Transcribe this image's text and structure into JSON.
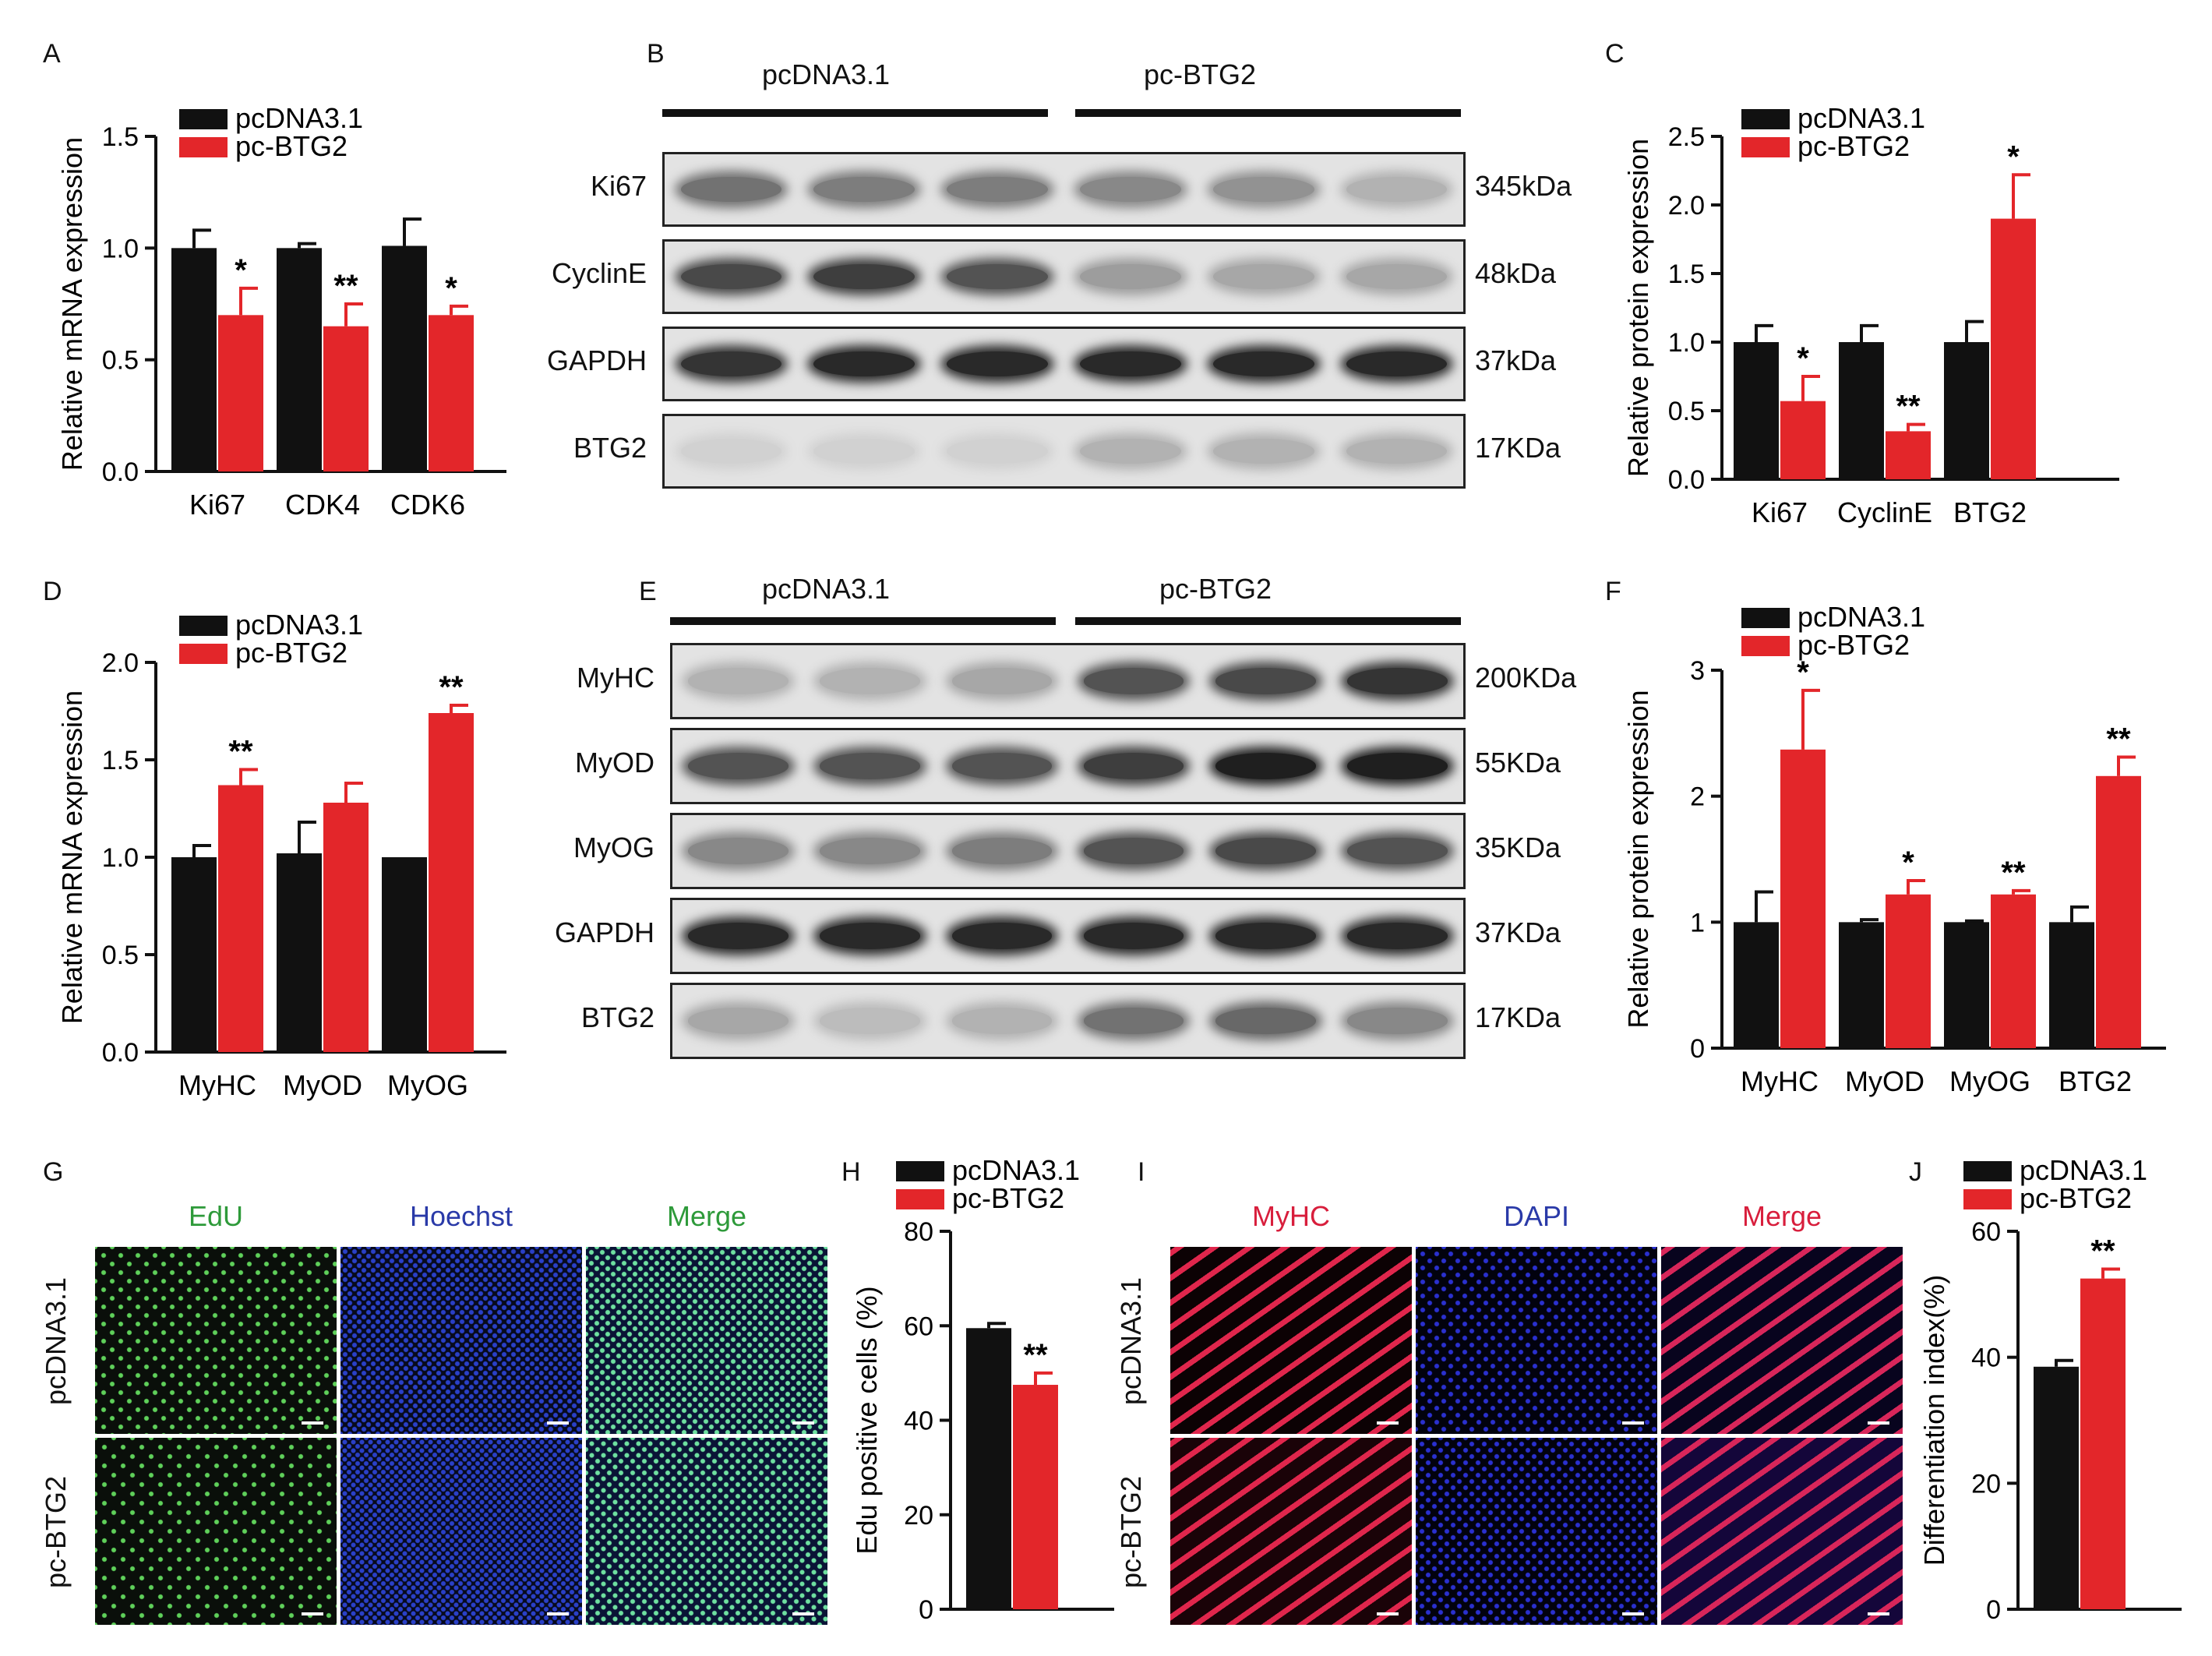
{
  "panels": {
    "A": "A",
    "B": "B",
    "C": "C",
    "D": "D",
    "E": "E",
    "F": "F",
    "G": "G",
    "H": "H",
    "I": "I",
    "J": "J"
  },
  "colors": {
    "control": "#111111",
    "treatment": "#e3262a"
  },
  "chart_data": [
    {
      "id": "A",
      "type": "bar",
      "ylabel": "Relative mRNA expression",
      "categories": [
        "Ki67",
        "CDK4",
        "CDK6"
      ],
      "ylim": [
        0,
        1.5
      ],
      "yticks": [
        "0.0",
        "0.5",
        "1.0",
        "1.5"
      ],
      "ytick_values": [
        0,
        0.5,
        1.0,
        1.5
      ],
      "legend": "top-left",
      "series": [
        {
          "name": "pcDNA3.1",
          "color": "#111111",
          "values": [
            1.0,
            1.0,
            1.01
          ],
          "errors": [
            0.08,
            0.02,
            0.12
          ]
        },
        {
          "name": "pc-BTG2",
          "color": "#e3262a",
          "values": [
            0.7,
            0.65,
            0.7
          ],
          "errors": [
            0.12,
            0.1,
            0.04
          ]
        }
      ],
      "significance": [
        "*",
        "**",
        "*"
      ]
    },
    {
      "id": "C",
      "type": "bar",
      "ylabel": "Relative protein expression",
      "categories": [
        "Ki67",
        "CyclinE",
        "BTG2"
      ],
      "ylim": [
        0,
        2.5
      ],
      "yticks": [
        "0.0",
        "0.5",
        "1.0",
        "1.5",
        "2.0",
        "2.5"
      ],
      "ytick_values": [
        0,
        0.5,
        1.0,
        1.5,
        2.0,
        2.5
      ],
      "legend": "top-left",
      "series": [
        {
          "name": "pcDNA3.1",
          "color": "#111111",
          "values": [
            1.0,
            1.0,
            1.0
          ],
          "errors": [
            0.12,
            0.12,
            0.15
          ]
        },
        {
          "name": "pc-BTG2",
          "color": "#e3262a",
          "values": [
            0.57,
            0.35,
            1.9
          ],
          "errors": [
            0.18,
            0.05,
            0.32
          ]
        }
      ],
      "significance": [
        "*",
        "**",
        "*"
      ]
    },
    {
      "id": "D",
      "type": "bar",
      "ylabel": "Relative mRNA expression",
      "categories": [
        "MyHC",
        "MyOD",
        "MyOG"
      ],
      "ylim": [
        0,
        2.0
      ],
      "yticks": [
        "0.0",
        "0.5",
        "1.0",
        "1.5",
        "2.0"
      ],
      "ytick_values": [
        0,
        0.5,
        1.0,
        1.5,
        2.0
      ],
      "legend": "top-left",
      "series": [
        {
          "name": "pcDNA3.1",
          "color": "#111111",
          "values": [
            1.0,
            1.02,
            1.0
          ],
          "errors": [
            0.06,
            0.16,
            0.0
          ]
        },
        {
          "name": "pc-BTG2",
          "color": "#e3262a",
          "values": [
            1.37,
            1.28,
            1.74
          ],
          "errors": [
            0.08,
            0.1,
            0.04
          ]
        }
      ],
      "significance": [
        "**",
        "",
        "**"
      ]
    },
    {
      "id": "F",
      "type": "bar",
      "ylabel": "Relative protein expression",
      "categories": [
        "MyHC",
        "MyOD",
        "MyOG",
        "BTG2"
      ],
      "ylim": [
        0,
        3
      ],
      "yticks": [
        "0",
        "1",
        "2",
        "3"
      ],
      "ytick_values": [
        0,
        1,
        2,
        3
      ],
      "legend": "top-left",
      "series": [
        {
          "name": "pcDNA3.1",
          "color": "#111111",
          "values": [
            1.0,
            1.0,
            1.0,
            1.0
          ],
          "errors": [
            0.24,
            0.02,
            0.01,
            0.12
          ]
        },
        {
          "name": "pc-BTG2",
          "color": "#e3262a",
          "values": [
            2.37,
            1.22,
            1.22,
            2.16
          ],
          "errors": [
            0.47,
            0.11,
            0.03,
            0.15
          ]
        }
      ],
      "significance": [
        "*",
        "*",
        "**",
        "**"
      ]
    },
    {
      "id": "H",
      "type": "bar",
      "ylabel": "Edu positive cells (%)",
      "categories": [
        ""
      ],
      "ylim": [
        0,
        80
      ],
      "yticks": [
        "0",
        "20",
        "40",
        "60",
        "80"
      ],
      "ytick_values": [
        0,
        20,
        40,
        60,
        80
      ],
      "legend": "top-left",
      "series": [
        {
          "name": "pcDNA3.1",
          "color": "#111111",
          "values": [
            59.5
          ],
          "errors": [
            1.0
          ]
        },
        {
          "name": "pc-BTG2",
          "color": "#e3262a",
          "values": [
            47.5
          ],
          "errors": [
            2.5
          ]
        }
      ],
      "significance": [
        "**"
      ]
    },
    {
      "id": "J",
      "type": "bar",
      "ylabel": "Differentiation index(%)",
      "categories": [
        ""
      ],
      "ylim": [
        0,
        60
      ],
      "yticks": [
        "0",
        "20",
        "40",
        "60"
      ],
      "ytick_values": [
        0,
        20,
        40,
        60
      ],
      "legend": "top-left",
      "series": [
        {
          "name": "pcDNA3.1",
          "color": "#111111",
          "values": [
            38.5
          ],
          "errors": [
            1.0
          ]
        },
        {
          "name": "pc-BTG2",
          "color": "#e3262a",
          "values": [
            52.5
          ],
          "errors": [
            1.5
          ]
        }
      ],
      "significance": [
        "**"
      ]
    }
  ],
  "blots": {
    "B": {
      "groups": [
        "pcDNA3.1",
        "pc-BTG2"
      ],
      "rows": [
        {
          "label": "Ki67",
          "kda": "345kDa",
          "intensity": [
            0.55,
            0.5,
            0.5,
            0.45,
            0.4,
            0.25
          ]
        },
        {
          "label": "CyclinE",
          "kda": "48kDa",
          "intensity": [
            0.75,
            0.8,
            0.7,
            0.35,
            0.3,
            0.3
          ]
        },
        {
          "label": "GAPDH",
          "kda": "37kDa",
          "intensity": [
            0.85,
            0.9,
            0.9,
            0.9,
            0.9,
            0.9
          ]
        },
        {
          "label": "BTG2",
          "kda": "17KDa",
          "intensity": [
            0.1,
            0.1,
            0.1,
            0.25,
            0.25,
            0.25
          ]
        }
      ]
    },
    "E": {
      "groups": [
        "pcDNA3.1",
        "pc-BTG2"
      ],
      "rows": [
        {
          "label": "MyHC",
          "kda": "200KDa",
          "intensity": [
            0.25,
            0.25,
            0.3,
            0.7,
            0.75,
            0.85
          ]
        },
        {
          "label": "MyOD",
          "kda": "55KDa",
          "intensity": [
            0.7,
            0.7,
            0.7,
            0.8,
            0.95,
            0.95
          ]
        },
        {
          "label": "MyOG",
          "kda": "35KDa",
          "intensity": [
            0.45,
            0.45,
            0.5,
            0.7,
            0.75,
            0.7
          ]
        },
        {
          "label": "GAPDH",
          "kda": "37KDa",
          "intensity": [
            0.9,
            0.9,
            0.9,
            0.9,
            0.9,
            0.9
          ]
        },
        {
          "label": "BTG2",
          "kda": "17KDa",
          "intensity": [
            0.3,
            0.2,
            0.25,
            0.55,
            0.6,
            0.45
          ]
        }
      ]
    }
  },
  "micrographs": {
    "G": {
      "titles": [
        "EdU",
        "Hoechst",
        "Merge"
      ],
      "title_colors": [
        "#2e9a3a",
        "#2a3aa8",
        "#2e9a3a"
      ],
      "rows": [
        "pcDNA3.1",
        "pc-BTG2"
      ]
    },
    "I": {
      "titles": [
        "MyHC",
        "DAPI",
        "Merge"
      ],
      "title_colors": [
        "#d81e3c",
        "#2a3aa8",
        "#d81e3c"
      ],
      "rows": [
        "pcDNA3.1",
        "pc-BTG2"
      ]
    }
  }
}
